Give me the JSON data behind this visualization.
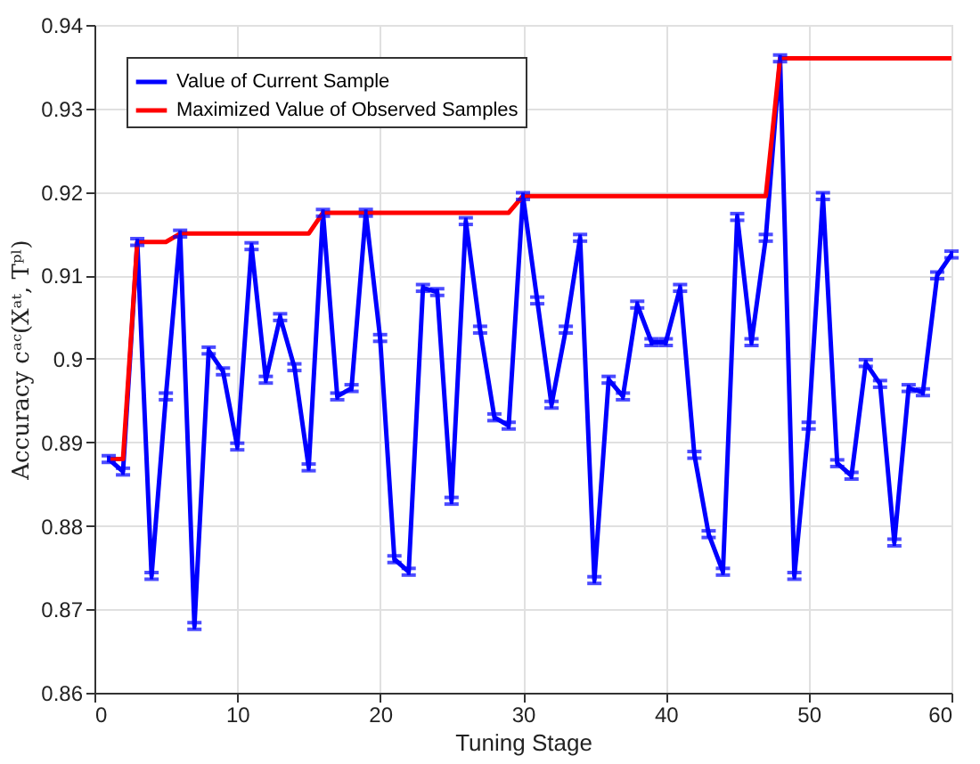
{
  "chart_data": {
    "type": "line",
    "xlabel": "Tuning Stage",
    "ylabel": "Accuracy cᵃᶜ(Xᵃᵗ, Tᵖˡ)",
    "x": [
      1,
      2,
      3,
      4,
      5,
      6,
      7,
      8,
      9,
      10,
      11,
      12,
      13,
      14,
      15,
      16,
      17,
      18,
      19,
      20,
      21,
      22,
      23,
      24,
      25,
      26,
      27,
      28,
      29,
      30,
      31,
      32,
      33,
      34,
      35,
      36,
      37,
      38,
      39,
      40,
      41,
      42,
      43,
      44,
      45,
      46,
      47,
      48,
      49,
      50,
      51,
      52,
      53,
      54,
      55,
      56,
      57,
      58,
      59,
      60
    ],
    "series": [
      {
        "name": "Value of Current Sample",
        "color": "#0000ff",
        "errors": [
          0.0004,
          0.0004,
          0.0004,
          0.0004,
          0.0004,
          0.0004,
          0.0004,
          0.0004,
          0.0004,
          0.0004,
          0.0004,
          0.0004,
          0.0004,
          0.0004,
          0.0004,
          0.0004,
          0.0004,
          0.0004,
          0.0004,
          0.0004,
          0.0004,
          0.0004,
          0.0004,
          0.0004,
          0.0004,
          0.0004,
          0.0004,
          0.0004,
          0.0004,
          0.0004,
          0.0004,
          0.0004,
          0.0004,
          0.0004,
          0.0004,
          0.0004,
          0.0004,
          0.0004,
          0.0004,
          0.0004,
          0.0004,
          0.0004,
          0.0004,
          0.0004,
          0.0004,
          0.0004,
          0.0004,
          0.0004,
          0.0004,
          0.0004,
          0.0004,
          0.0004,
          0.0004,
          0.0004,
          0.0004,
          0.0004,
          0.0004,
          0.0004,
          0.0004,
          0.0004
        ],
        "values": [
          0.888,
          0.8865,
          0.914,
          0.874,
          0.8955,
          0.915,
          0.868,
          0.901,
          0.8985,
          0.8895,
          0.9135,
          0.8975,
          0.905,
          0.899,
          0.887,
          0.9175,
          0.8955,
          0.8965,
          0.9175,
          0.9025,
          0.876,
          0.8745,
          0.9085,
          0.908,
          0.883,
          0.9165,
          0.9035,
          0.893,
          0.892,
          0.9195,
          0.907,
          0.8945,
          0.9035,
          0.9145,
          0.8735,
          0.8975,
          0.8955,
          0.9065,
          0.902,
          0.902,
          0.9085,
          0.8885,
          0.879,
          0.8745,
          0.917,
          0.902,
          0.9145,
          0.936,
          0.874,
          0.892,
          0.9195,
          0.8875,
          0.886,
          0.8995,
          0.897,
          0.878,
          0.8965,
          0.896,
          0.91,
          0.9125
        ]
      },
      {
        "name": "Maximized Value of Observed Samples",
        "color": "#ff0000",
        "values": [
          0.888,
          0.888,
          0.914,
          0.914,
          0.914,
          0.915,
          0.915,
          0.915,
          0.915,
          0.915,
          0.915,
          0.915,
          0.915,
          0.915,
          0.915,
          0.9175,
          0.9175,
          0.9175,
          0.9175,
          0.9175,
          0.9175,
          0.9175,
          0.9175,
          0.9175,
          0.9175,
          0.9175,
          0.9175,
          0.9175,
          0.9175,
          0.9195,
          0.9195,
          0.9195,
          0.9195,
          0.9195,
          0.9195,
          0.9195,
          0.9195,
          0.9195,
          0.9195,
          0.9195,
          0.9195,
          0.9195,
          0.9195,
          0.9195,
          0.9195,
          0.9195,
          0.9195,
          0.936,
          0.936,
          0.936,
          0.936,
          0.936,
          0.936,
          0.936,
          0.936,
          0.936,
          0.936,
          0.936,
          0.936,
          0.936
        ]
      }
    ],
    "xlim": [
      0,
      60
    ],
    "xticks": [
      0,
      10,
      20,
      30,
      40,
      50,
      60
    ],
    "ylim": [
      0.86,
      0.94
    ],
    "yticks": [
      0.86,
      0.87,
      0.88,
      0.89,
      0.9,
      0.91,
      0.92,
      0.93,
      0.94
    ],
    "grid": true,
    "legend": "top left",
    "marker": "none",
    "line_style": "solid"
  }
}
